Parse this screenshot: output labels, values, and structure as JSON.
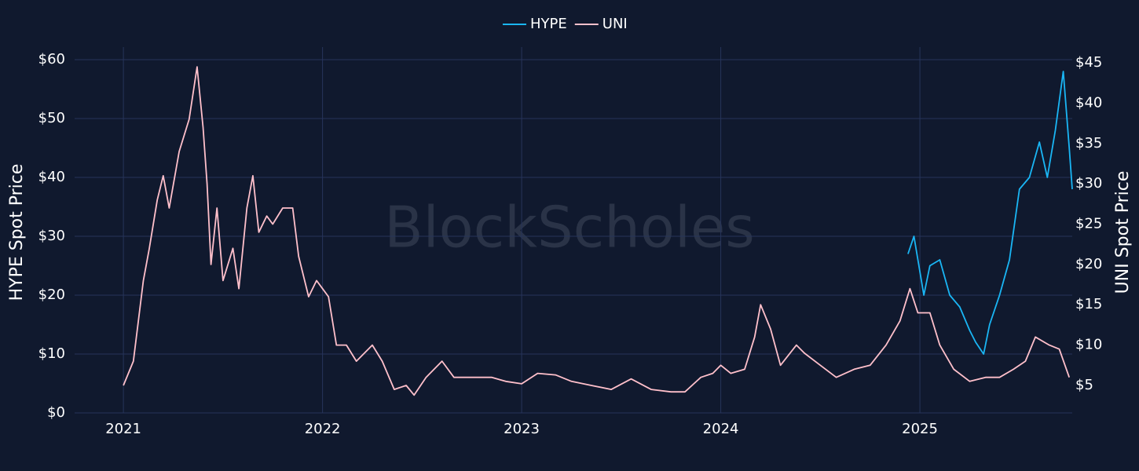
{
  "chart_data": {
    "type": "line",
    "watermark": "BlockScholes",
    "y_label": "HYPE Spot Price",
    "y2_label": "UNI Spot Price",
    "grid": true,
    "legend": "top",
    "xlim": [
      2020.755,
      2025.765
    ],
    "xticks": [
      2021,
      2022,
      2023,
      2024,
      2025
    ],
    "ylim": [
      0,
      62.13
    ],
    "yticks": [
      {
        "value": 0,
        "label": "$0"
      },
      {
        "value": 10,
        "label": "$10"
      },
      {
        "value": 20,
        "label": "$20"
      },
      {
        "value": 30,
        "label": "$30"
      },
      {
        "value": 40,
        "label": "$40"
      },
      {
        "value": 50,
        "label": "$50"
      },
      {
        "value": 60,
        "label": "$60"
      }
    ],
    "y2lim": [
      1.59,
      46.95
    ],
    "y2ticks": [
      {
        "value": 5,
        "label": "$5"
      },
      {
        "value": 10,
        "label": "$10"
      },
      {
        "value": 15,
        "label": "$15"
      },
      {
        "value": 20,
        "label": "$20"
      },
      {
        "value": 25,
        "label": "$25"
      },
      {
        "value": 30,
        "label": "$30"
      },
      {
        "value": 35,
        "label": "$35"
      },
      {
        "value": 40,
        "label": "$40"
      },
      {
        "value": 45,
        "label": "$45"
      }
    ],
    "series": [
      {
        "name": "HYPE",
        "color": "#1ab6f5",
        "axis": "y",
        "x": [
          2024.94,
          2024.97,
          2025.02,
          2025.05,
          2025.1,
          2025.15,
          2025.2,
          2025.25,
          2025.28,
          2025.32,
          2025.35,
          2025.4,
          2025.45,
          2025.5,
          2025.55,
          2025.6,
          2025.64,
          2025.68,
          2025.72,
          2025.75,
          2025.765
        ],
        "values": [
          27,
          30,
          20,
          25,
          26,
          20,
          18,
          14,
          12,
          10,
          15,
          20,
          26,
          38,
          40,
          46,
          40,
          48,
          58,
          45,
          38
        ]
      },
      {
        "name": "UNI",
        "color": "#ffc0cb",
        "axis": "y2",
        "x": [
          2021.0,
          2021.05,
          2021.1,
          2021.13,
          2021.17,
          2021.2,
          2021.23,
          2021.28,
          2021.33,
          2021.37,
          2021.4,
          2021.42,
          2021.44,
          2021.47,
          2021.5,
          2021.55,
          2021.58,
          2021.62,
          2021.65,
          2021.68,
          2021.72,
          2021.75,
          2021.8,
          2021.85,
          2021.88,
          2021.93,
          2021.97,
          2022.0,
          2022.03,
          2022.07,
          2022.12,
          2022.17,
          2022.25,
          2022.3,
          2022.36,
          2022.42,
          2022.46,
          2022.52,
          2022.6,
          2022.66,
          2022.75,
          2022.85,
          2022.92,
          2023.0,
          2023.08,
          2023.17,
          2023.25,
          2023.35,
          2023.45,
          2023.55,
          2023.65,
          2023.75,
          2023.82,
          2023.9,
          2023.96,
          2024.0,
          2024.05,
          2024.12,
          2024.17,
          2024.2,
          2024.25,
          2024.3,
          2024.38,
          2024.42,
          2024.5,
          2024.58,
          2024.67,
          2024.75,
          2024.83,
          2024.9,
          2024.95,
          2024.99,
          2025.05,
          2025.1,
          2025.17,
          2025.25,
          2025.33,
          2025.4,
          2025.47,
          2025.53,
          2025.58,
          2025.65,
          2025.7,
          2025.75
        ],
        "values": [
          5,
          8,
          18,
          22,
          28,
          31,
          27,
          34,
          38,
          44.5,
          37,
          30,
          20,
          27,
          18,
          22,
          17,
          27,
          31,
          24,
          26,
          25,
          27,
          27,
          21,
          16,
          18,
          17,
          16,
          10,
          10,
          8,
          10,
          8,
          4.5,
          5,
          3.8,
          6,
          8,
          6,
          6,
          6,
          5.5,
          5.2,
          6.5,
          6.3,
          5.5,
          5,
          4.5,
          5.8,
          4.5,
          4.2,
          4.2,
          6,
          6.5,
          7.5,
          6.5,
          7,
          11,
          15,
          12,
          7.5,
          10,
          9,
          7.5,
          6,
          7,
          7.5,
          10,
          13,
          17,
          14,
          14,
          10,
          7,
          5.5,
          6,
          6,
          7,
          8,
          11,
          10,
          9.5,
          6
        ]
      }
    ]
  }
}
